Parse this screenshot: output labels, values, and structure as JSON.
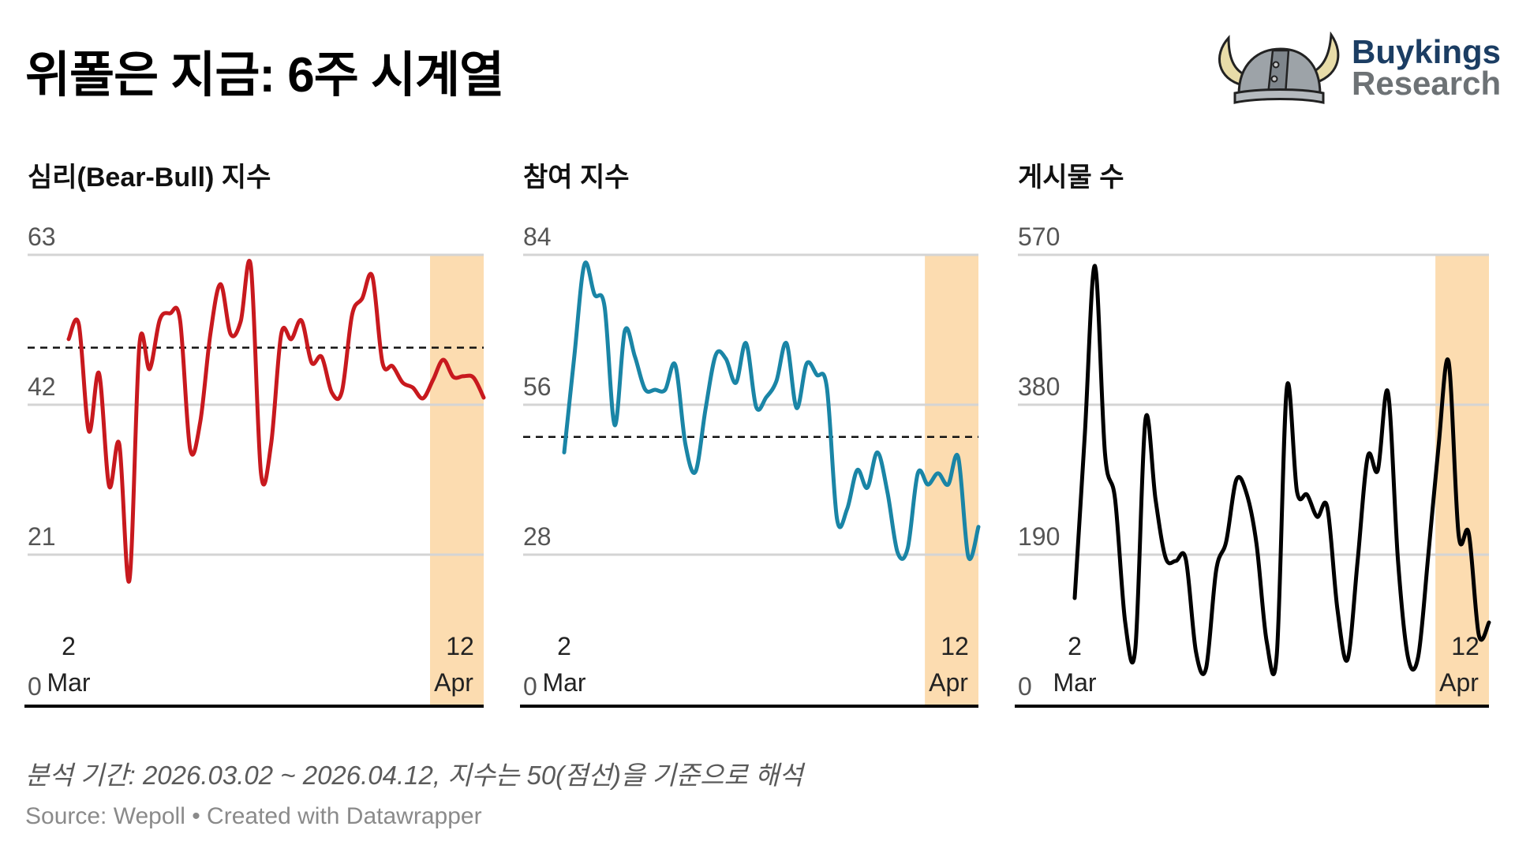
{
  "header": {
    "title": "위폴은 지금: 6주 시계열"
  },
  "logo": {
    "line1": "Buykings",
    "line2": "Research",
    "colors": {
      "line1": "#1b3d63",
      "line2": "#6d7275"
    }
  },
  "footer": {
    "note": "분석 기간: 2026.03.02 ~ 2026.04.12, 지수는 50(점선)을 기준으로 해석",
    "source": "Source: Wepoll • Created with Datawrapper"
  },
  "chart_data": [
    {
      "type": "line",
      "title": "심리(Bear-Bull) 지수",
      "color": "#c8191e",
      "ylim": [
        0,
        63
      ],
      "yticks": [
        "0",
        "21",
        "42",
        "63"
      ],
      "reference_line": 50,
      "x_start": "2026-03-02",
      "x_end": "2026-04-12",
      "x_unit": "day",
      "xticks": [
        {
          "day": "2",
          "month": "Mar"
        },
        {
          "day": "12",
          "month": "Apr"
        }
      ],
      "highlight_from_index": 35,
      "values": [
        51.2,
        53.3,
        38.3,
        46.4,
        30.6,
        36.5,
        17.4,
        50.5,
        47.0,
        53.9,
        54.8,
        53.9,
        35.8,
        39.6,
        51.9,
        58.9,
        51.9,
        53.7,
        61.4,
        32.4,
        36.5,
        51.9,
        51.2,
        53.8,
        47.9,
        48.7,
        43.7,
        43.9,
        54.6,
        56.9,
        60.0,
        47.9,
        47.4,
        45.1,
        44.4,
        42.9,
        45.5,
        48.3,
        45.9,
        46.0,
        45.8,
        43.0
      ]
    },
    {
      "type": "line",
      "title": "참여 지수",
      "color": "#1a85a6",
      "ylim": [
        0,
        84
      ],
      "yticks": [
        "0",
        "28",
        "56",
        "84"
      ],
      "reference_line": 50,
      "x_start": "2026-03-02",
      "x_end": "2026-04-12",
      "x_unit": "day",
      "xticks": [
        {
          "day": "2",
          "month": "Mar"
        },
        {
          "day": "12",
          "month": "Apr"
        }
      ],
      "highlight_from_index": 35,
      "values": [
        47.1,
        65.0,
        82.2,
        76.6,
        74.3,
        52.2,
        69.8,
        65.0,
        58.9,
        58.8,
        58.8,
        63.4,
        48.6,
        43.5,
        55.3,
        65.3,
        64.6,
        60.1,
        67.5,
        55.6,
        57.4,
        60.4,
        67.5,
        55.4,
        63.7,
        61.6,
        59.2,
        34.7,
        36.5,
        43.8,
        40.5,
        47.1,
        39.6,
        28.4,
        29.2,
        43.2,
        41.1,
        43.2,
        41.1,
        46.2,
        27.6,
        33.2
      ]
    },
    {
      "type": "line",
      "title": "게시물 수",
      "color": "#000000",
      "ylim": [
        0,
        570
      ],
      "yticks": [
        "0",
        "190",
        "380",
        "570"
      ],
      "reference_line": null,
      "x_start": "2026-03-02",
      "x_end": "2026-04-12",
      "x_unit": "day",
      "xticks": [
        {
          "day": "2",
          "month": "Mar"
        },
        {
          "day": "12",
          "month": "Apr"
        }
      ],
      "highlight_from_index": 35,
      "values": [
        135,
        342,
        556,
        318,
        260,
        104,
        71,
        361,
        260,
        186,
        182,
        184,
        67,
        46,
        170,
        207,
        285,
        268,
        203,
        80,
        63,
        402,
        270,
        266,
        238,
        250,
        121,
        57,
        182,
        314,
        297,
        396,
        182,
        59,
        61,
        190,
        326,
        435,
        215,
        217,
        88,
        104
      ]
    }
  ],
  "colors": {
    "highlight": "#fcdcb0",
    "grid": "#d4d4d4",
    "tick_text": "#555555"
  }
}
